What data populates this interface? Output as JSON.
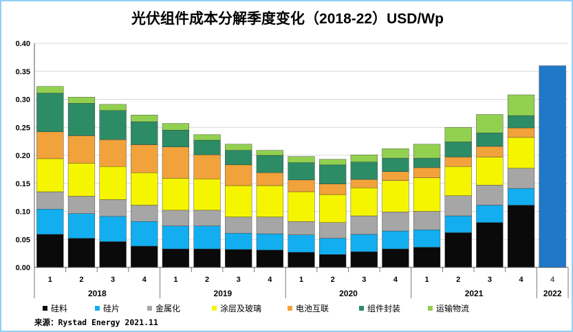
{
  "chart_data": {
    "type": "bar",
    "stacked": true,
    "title": "光伏组件成本分解季度变化（2018-22）USD/Wp",
    "source": "来源：Rystad Energy 2021.11",
    "ylim": [
      0,
      0.4
    ],
    "yticks": [
      "0.00",
      "0.05",
      "0.10",
      "0.15",
      "0.20",
      "0.25",
      "0.30",
      "0.35",
      "0.40"
    ],
    "grid": true,
    "legend_position": "bottom",
    "categories": [
      {
        "quarter": "1",
        "year": "2018"
      },
      {
        "quarter": "2",
        "year": "2018"
      },
      {
        "quarter": "3",
        "year": "2018"
      },
      {
        "quarter": "4",
        "year": "2018"
      },
      {
        "quarter": "1",
        "year": "2019"
      },
      {
        "quarter": "2",
        "year": "2019"
      },
      {
        "quarter": "3",
        "year": "2019"
      },
      {
        "quarter": "4",
        "year": "2019"
      },
      {
        "quarter": "1",
        "year": "2020"
      },
      {
        "quarter": "2",
        "year": "2020"
      },
      {
        "quarter": "3",
        "year": "2020"
      },
      {
        "quarter": "4",
        "year": "2020"
      },
      {
        "quarter": "1",
        "year": "2021"
      },
      {
        "quarter": "2",
        "year": "2021"
      },
      {
        "quarter": "3",
        "year": "2021"
      },
      {
        "quarter": "4",
        "year": "2021"
      },
      {
        "quarter": "4",
        "year": "2022"
      }
    ],
    "year_groups": [
      {
        "label": "2018",
        "start": 0,
        "end": 3
      },
      {
        "label": "2019",
        "start": 4,
        "end": 7
      },
      {
        "label": "2020",
        "start": 8,
        "end": 11
      },
      {
        "label": "2021",
        "start": 12,
        "end": 15
      },
      {
        "label": "2022",
        "start": 16,
        "end": 16
      }
    ],
    "series": [
      {
        "name": "硅料",
        "color": "#0a0a0a",
        "values": [
          0.059,
          0.052,
          0.046,
          0.038,
          0.033,
          0.033,
          0.032,
          0.031,
          0.027,
          0.023,
          0.028,
          0.033,
          0.036,
          0.062,
          0.08,
          0.111,
          0
        ]
      },
      {
        "name": "硅片",
        "color": "#12aef0",
        "values": [
          0.045,
          0.044,
          0.045,
          0.044,
          0.041,
          0.041,
          0.029,
          0.029,
          0.031,
          0.029,
          0.031,
          0.032,
          0.031,
          0.03,
          0.031,
          0.03,
          0
        ]
      },
      {
        "name": "金属化",
        "color": "#a6a6a6",
        "values": [
          0.031,
          0.031,
          0.03,
          0.029,
          0.028,
          0.028,
          0.029,
          0.03,
          0.024,
          0.028,
          0.033,
          0.034,
          0.033,
          0.036,
          0.036,
          0.036,
          0
        ]
      },
      {
        "name": "涂层及玻璃",
        "color": "#f5f500",
        "values": [
          0.059,
          0.059,
          0.059,
          0.058,
          0.057,
          0.056,
          0.056,
          0.056,
          0.053,
          0.05,
          0.05,
          0.056,
          0.06,
          0.052,
          0.05,
          0.055,
          0
        ]
      },
      {
        "name": "电池互联",
        "color": "#f2a23a",
        "values": [
          0.048,
          0.049,
          0.048,
          0.05,
          0.056,
          0.043,
          0.037,
          0.023,
          0.021,
          0.019,
          0.015,
          0.016,
          0.018,
          0.017,
          0.019,
          0.017,
          0
        ]
      },
      {
        "name": "组件封装",
        "color": "#2c8c66",
        "values": [
          0.069,
          0.058,
          0.052,
          0.041,
          0.03,
          0.026,
          0.026,
          0.031,
          0.031,
          0.034,
          0.031,
          0.024,
          0.017,
          0.027,
          0.024,
          0.022,
          0
        ]
      },
      {
        "name": "运输物流",
        "color": "#92d050",
        "values": [
          0.012,
          0.011,
          0.011,
          0.012,
          0.012,
          0.01,
          0.011,
          0.009,
          0.011,
          0.01,
          0.013,
          0.017,
          0.025,
          0.026,
          0.033,
          0.037,
          0
        ]
      },
      {
        "name": "2022",
        "color": "#1f78c8",
        "in_legend": false,
        "values": [
          0,
          0,
          0,
          0,
          0,
          0,
          0,
          0,
          0,
          0,
          0,
          0,
          0,
          0,
          0,
          0,
          0.36
        ]
      }
    ]
  }
}
